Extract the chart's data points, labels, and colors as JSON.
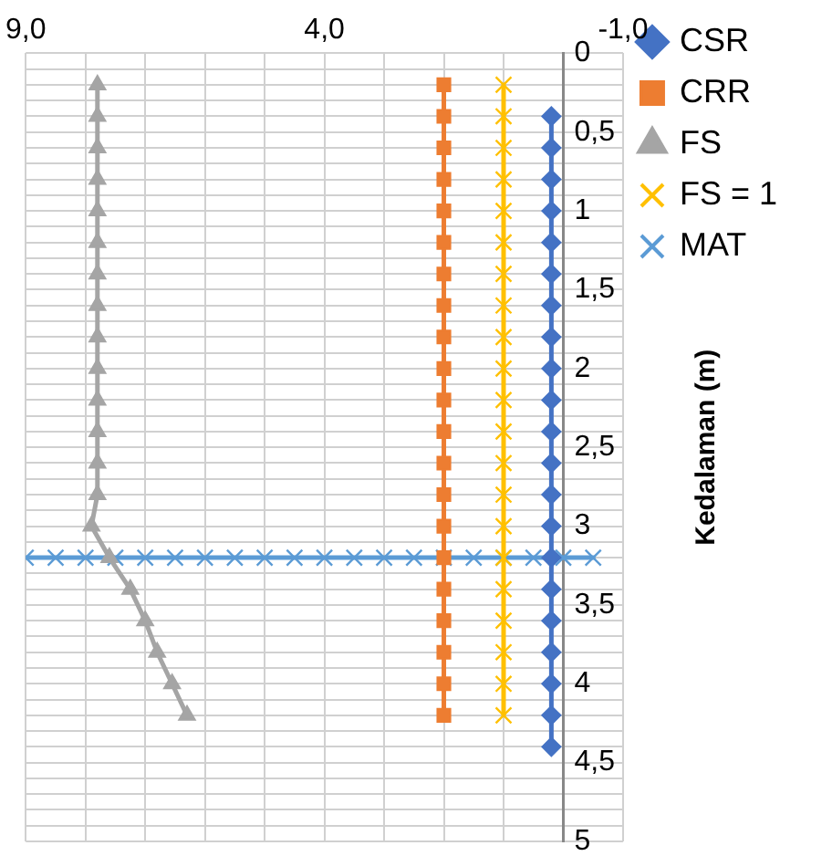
{
  "chart_data": {
    "type": "line",
    "ylabel": "Kedalaman (m)",
    "xlim": [
      9,
      -1
    ],
    "xticks": [
      {
        "value": 9,
        "label": "9,0"
      },
      {
        "value": 8,
        "label": null
      },
      {
        "value": 7,
        "label": null
      },
      {
        "value": 6,
        "label": null
      },
      {
        "value": 5,
        "label": null
      },
      {
        "value": 4,
        "label": "4,0"
      },
      {
        "value": 3,
        "label": null
      },
      {
        "value": 2,
        "label": null
      },
      {
        "value": 1,
        "label": null
      },
      {
        "value": 0,
        "label": null
      },
      {
        "value": -1,
        "label": "-1,0"
      }
    ],
    "ylim": [
      5,
      0
    ],
    "yticks": [
      0,
      {
        "value": 0.1,
        "label": null
      },
      {
        "value": 0.2,
        "label": null
      },
      {
        "value": 0.3,
        "label": null
      },
      {
        "value": 0.4,
        "label": null
      },
      {
        "value": 0.5,
        "label": "0,5"
      },
      {
        "value": 0.6,
        "label": null
      },
      {
        "value": 0.7,
        "label": null
      },
      {
        "value": 0.8,
        "label": null
      },
      {
        "value": 0.9,
        "label": null
      },
      1,
      {
        "value": 1.1,
        "label": null
      },
      {
        "value": 1.2,
        "label": null
      },
      {
        "value": 1.3,
        "label": null
      },
      {
        "value": 1.4,
        "label": null
      },
      {
        "value": 1.5,
        "label": "1,5"
      },
      {
        "value": 1.6,
        "label": null
      },
      {
        "value": 1.7,
        "label": null
      },
      {
        "value": 1.8,
        "label": null
      },
      {
        "value": 1.9,
        "label": null
      },
      2,
      {
        "value": 2.1,
        "label": null
      },
      {
        "value": 2.2,
        "label": null
      },
      {
        "value": 2.3,
        "label": null
      },
      {
        "value": 2.4,
        "label": null
      },
      {
        "value": 2.5,
        "label": "2,5"
      },
      {
        "value": 2.6,
        "label": null
      },
      {
        "value": 2.7,
        "label": null
      },
      {
        "value": 2.8,
        "label": null
      },
      {
        "value": 2.9,
        "label": null
      },
      3,
      {
        "value": 3.1,
        "label": null
      },
      {
        "value": 3.2,
        "label": null
      },
      {
        "value": 3.3,
        "label": null
      },
      {
        "value": 3.4,
        "label": null
      },
      {
        "value": 3.5,
        "label": "3,5"
      },
      {
        "value": 3.6,
        "label": null
      },
      {
        "value": 3.7,
        "label": null
      },
      {
        "value": 3.8,
        "label": null
      },
      {
        "value": 3.9,
        "label": null
      },
      4,
      {
        "value": 4.1,
        "label": null
      },
      {
        "value": 4.2,
        "label": null
      },
      {
        "value": 4.3,
        "label": null
      },
      {
        "value": 4.4,
        "label": null
      },
      {
        "value": 4.5,
        "label": "4,5"
      },
      {
        "value": 4.6,
        "label": null
      },
      {
        "value": 4.7,
        "label": null
      },
      {
        "value": 4.8,
        "label": null
      },
      {
        "value": 4.9,
        "label": null
      },
      5
    ],
    "grid": true,
    "legend": "top right",
    "line_style": "solid",
    "series": [
      {
        "name": "CSR",
        "color": "#4472c4",
        "marker": "diamond",
        "x": [
          0.2,
          0.2,
          0.2,
          0.2,
          0.2,
          0.2,
          0.2,
          0.2,
          0.2,
          0.2,
          0.2,
          0.2,
          0.2,
          0.2,
          0.2,
          0.2,
          0.2,
          0.2,
          0.2,
          0.2,
          0.2
        ],
        "values": [
          0.4,
          0.6,
          0.8,
          1.0,
          1.2,
          1.4,
          1.6,
          1.8,
          2.0,
          2.2,
          2.4,
          2.6,
          2.8,
          3.0,
          3.2,
          3.4,
          3.6,
          3.8,
          4.0,
          4.2,
          4.4
        ]
      },
      {
        "name": "CRR",
        "color": "#ed7d31",
        "marker": "square",
        "x": [
          2,
          2,
          2,
          2,
          2,
          2,
          2,
          2,
          2,
          2,
          2,
          2,
          2,
          2,
          2,
          2,
          2,
          2,
          2,
          2,
          2
        ],
        "values": [
          0.2,
          0.4,
          0.6,
          0.8,
          1.0,
          1.2,
          1.4,
          1.6,
          1.8,
          2.0,
          2.2,
          2.4,
          2.6,
          2.8,
          3.0,
          3.2,
          3.4,
          3.6,
          3.8,
          4.0,
          4.2
        ]
      },
      {
        "name": "FS",
        "color": "#a5a5a5",
        "marker": "triangle",
        "x": [
          7.8,
          7.8,
          7.8,
          7.8,
          7.8,
          7.8,
          7.8,
          7.8,
          7.8,
          7.8,
          7.8,
          7.8,
          7.8,
          7.8,
          7.9,
          7.6,
          7.25,
          7.0,
          6.8,
          6.55,
          6.3
        ],
        "values": [
          0.2,
          0.4,
          0.6,
          0.8,
          1.0,
          1.2,
          1.4,
          1.6,
          1.8,
          2.0,
          2.2,
          2.4,
          2.6,
          2.8,
          3.0,
          3.2,
          3.4,
          3.6,
          3.8,
          4.0,
          4.2
        ]
      },
      {
        "name": "FS = 1",
        "color": "#ffc000",
        "marker": "cross",
        "x": [
          1,
          1,
          1,
          1,
          1,
          1,
          1,
          1,
          1,
          1,
          1,
          1,
          1,
          1,
          1,
          1,
          1,
          1,
          1,
          1,
          1
        ],
        "values": [
          0.2,
          0.4,
          0.6,
          0.8,
          1.0,
          1.2,
          1.4,
          1.6,
          1.8,
          2.0,
          2.2,
          2.4,
          2.6,
          2.8,
          3.0,
          3.2,
          3.4,
          3.6,
          3.8,
          4.0,
          4.2
        ]
      },
      {
        "name": "MAT",
        "color": "#5b9bd5",
        "marker": "cross",
        "x": [
          9,
          8.5,
          8,
          7.5,
          7,
          6.5,
          6,
          5.5,
          5,
          4.5,
          4,
          3.5,
          3,
          2.5,
          2,
          1.5,
          1,
          0.5,
          0,
          -0.5
        ],
        "values": [
          3.2,
          3.2,
          3.2,
          3.2,
          3.2,
          3.2,
          3.2,
          3.2,
          3.2,
          3.2,
          3.2,
          3.2,
          3.2,
          3.2,
          3.2,
          3.2,
          3.2,
          3.2,
          3.2,
          3.2
        ]
      }
    ]
  }
}
